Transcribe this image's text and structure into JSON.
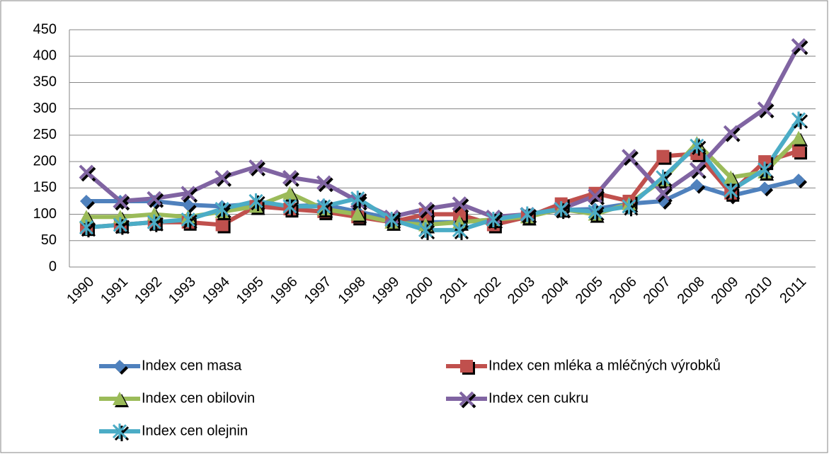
{
  "chart_data": {
    "type": "line",
    "categories": [
      "1990",
      "1991",
      "1992",
      "1993",
      "1994",
      "1995",
      "1996",
      "1997",
      "1998",
      "1999",
      "2000",
      "2001",
      "2002",
      "2003",
      "2004",
      "2005",
      "2006",
      "2007",
      "2008",
      "2009",
      "2010",
      "2011"
    ],
    "series": [
      {
        "name": "Index cen masa",
        "color": "#4f81bd",
        "marker": "diamond",
        "values": [
          125,
          125,
          125,
          118,
          115,
          120,
          115,
          118,
          105,
          92,
          85,
          85,
          90,
          100,
          108,
          110,
          120,
          125,
          155,
          135,
          150,
          165
        ]
      },
      {
        "name": "Index cen mléka a mléčných výrobků",
        "color": "#c0504d",
        "marker": "square",
        "values": [
          75,
          80,
          85,
          85,
          80,
          115,
          110,
          105,
          95,
          85,
          100,
          100,
          80,
          95,
          120,
          140,
          125,
          210,
          215,
          140,
          200,
          220
        ]
      },
      {
        "name": "Index cen obilovin",
        "color": "#9bbb59",
        "marker": "triangle",
        "values": [
          95,
          95,
          100,
          95,
          105,
          115,
          140,
          110,
          100,
          85,
          80,
          85,
          90,
          95,
          110,
          100,
          120,
          165,
          235,
          170,
          180,
          245
        ]
      },
      {
        "name": "Index cen cukru",
        "color": "#8064a2",
        "marker": "x",
        "values": [
          180,
          125,
          130,
          140,
          170,
          190,
          170,
          160,
          125,
          95,
          110,
          120,
          95,
          100,
          110,
          135,
          210,
          140,
          185,
          255,
          300,
          420
        ]
      },
      {
        "name": "Index cen olejnin",
        "color": "#4bacc6",
        "marker": "star",
        "values": [
          75,
          80,
          85,
          90,
          110,
          125,
          115,
          115,
          130,
          90,
          70,
          70,
          90,
          100,
          110,
          105,
          115,
          170,
          230,
          145,
          185,
          280
        ]
      }
    ],
    "ylim": [
      0,
      450
    ],
    "yticks": [
      0,
      50,
      100,
      150,
      200,
      250,
      300,
      350,
      400,
      450
    ],
    "grid": true,
    "legend": "bottom"
  }
}
